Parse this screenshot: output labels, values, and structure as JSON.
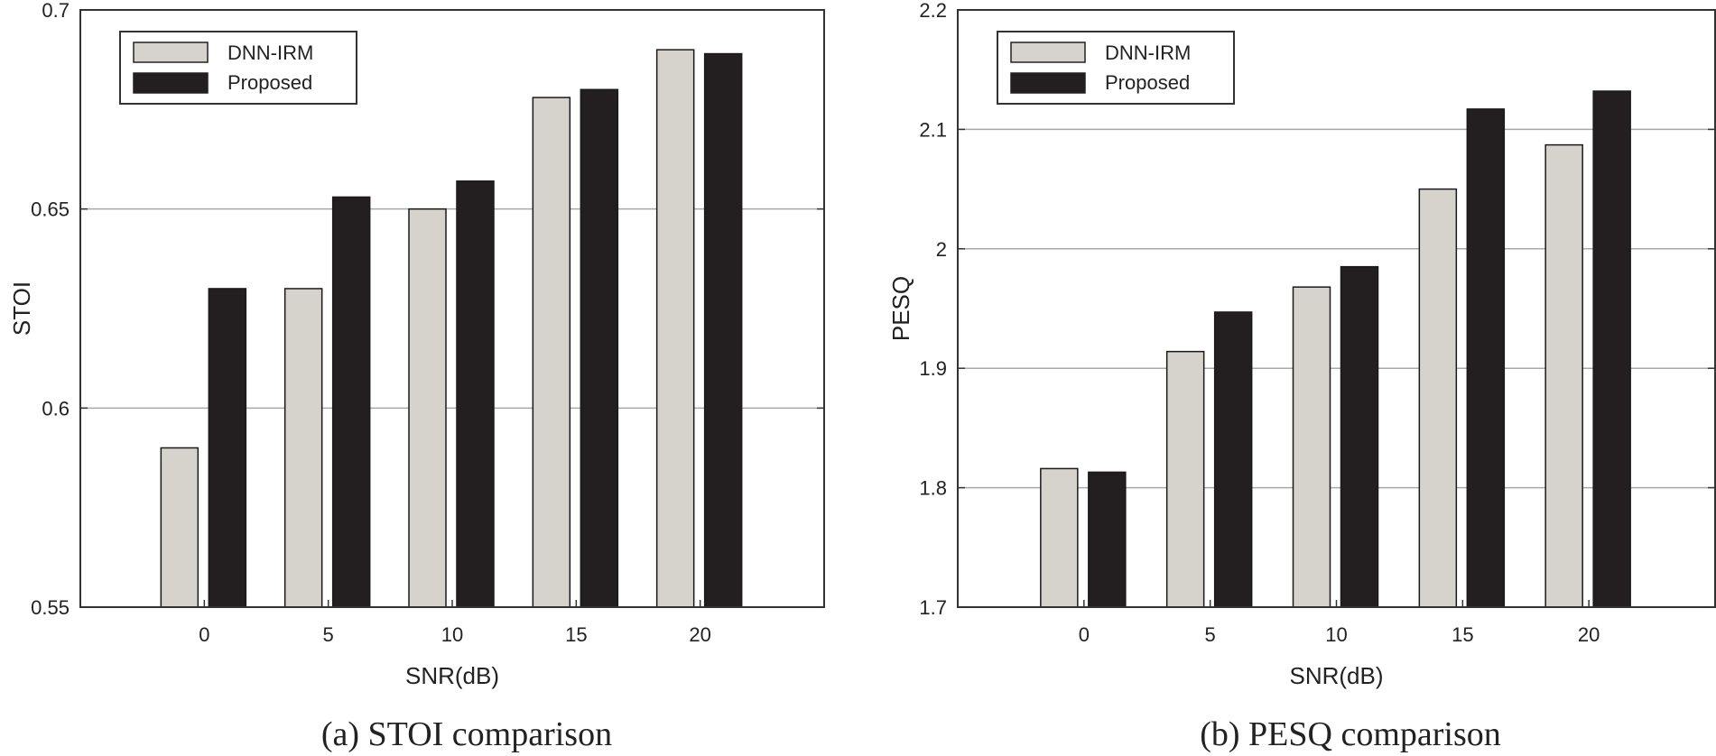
{
  "chart_data": [
    {
      "type": "bar",
      "caption": "(a) STOI comparison",
      "xlabel": "SNR(dB)",
      "ylabel": "STOI",
      "categories": [
        "0",
        "5",
        "10",
        "15",
        "20"
      ],
      "ylim": [
        0.55,
        0.7
      ],
      "yticks": [
        "0.55",
        "0.6",
        "0.65",
        "0.7"
      ],
      "grid": true,
      "legend": "top-left",
      "series": [
        {
          "name": "DNN-IRM",
          "color": "#d6d2cc",
          "values": [
            0.59,
            0.63,
            0.65,
            0.678,
            0.69
          ]
        },
        {
          "name": "Proposed",
          "color": "#231f20",
          "values": [
            0.63,
            0.653,
            0.657,
            0.68,
            0.689
          ]
        }
      ]
    },
    {
      "type": "bar",
      "caption": "(b) PESQ comparison",
      "xlabel": "SNR(dB)",
      "ylabel": "PESQ",
      "categories": [
        "0",
        "5",
        "10",
        "15",
        "20"
      ],
      "ylim": [
        1.7,
        2.2
      ],
      "yticks": [
        "1.7",
        "1.8",
        "1.9",
        "2",
        "2.1",
        "2.2"
      ],
      "grid": true,
      "legend": "top-left",
      "series": [
        {
          "name": "DNN-IRM",
          "color": "#d6d2cc",
          "values": [
            1.816,
            1.914,
            1.968,
            2.05,
            2.087
          ]
        },
        {
          "name": "Proposed",
          "color": "#231f20",
          "values": [
            1.813,
            1.947,
            1.985,
            2.117,
            2.132
          ]
        }
      ]
    }
  ]
}
